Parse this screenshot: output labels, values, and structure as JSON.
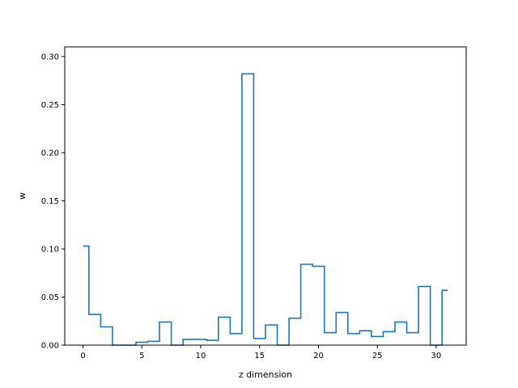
{
  "chart_data": {
    "type": "line",
    "style": "step",
    "title": "",
    "xlabel": "z dimension",
    "ylabel": "w",
    "xlim": [
      -1.55,
      32.55
    ],
    "ylim": [
      0,
      0.31
    ],
    "xticks": [
      0,
      5,
      10,
      15,
      20,
      25,
      30
    ],
    "xtick_labels": [
      "0",
      "5",
      "10",
      "15",
      "20",
      "25",
      "30"
    ],
    "yticks": [
      0.0,
      0.05,
      0.1,
      0.15,
      0.2,
      0.25,
      0.3
    ],
    "ytick_labels": [
      "0.00",
      "0.05",
      "0.10",
      "0.15",
      "0.20",
      "0.25",
      "0.30"
    ],
    "grid": false,
    "series": [
      {
        "color": "#1f77b4",
        "x": [
          0,
          1,
          2,
          3,
          4,
          5,
          6,
          7,
          8,
          9,
          10,
          11,
          12,
          13,
          14,
          15,
          16,
          17,
          18,
          19,
          20,
          21,
          22,
          23,
          24,
          25,
          26,
          27,
          28,
          29,
          30,
          31
        ],
        "values": [
          0.103,
          0.032,
          0.019,
          0.0,
          0.0,
          0.003,
          0.004,
          0.024,
          0.0,
          0.006,
          0.006,
          0.005,
          0.029,
          0.012,
          0.282,
          0.007,
          0.021,
          0.0,
          0.028,
          0.084,
          0.082,
          0.013,
          0.034,
          0.012,
          0.015,
          0.009,
          0.014,
          0.024,
          0.013,
          0.061,
          0.0,
          0.057
        ]
      }
    ]
  }
}
